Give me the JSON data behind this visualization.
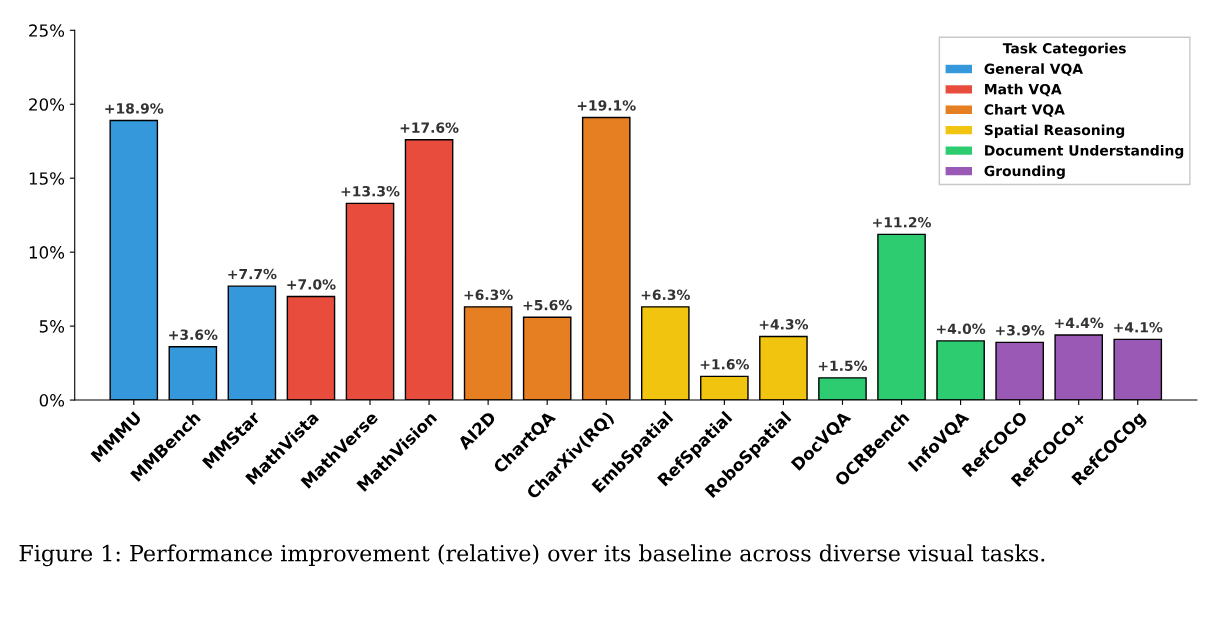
{
  "chart_data": {
    "type": "bar",
    "categories": [
      "MMMU",
      "MMBench",
      "MMStar",
      "MathVista",
      "MathVerse",
      "MathVision",
      "AI2D",
      "ChartQA",
      "CharXiv(RQ)",
      "EmbSpatial",
      "RefSpatial",
      "RoboSpatial",
      "DocVQA",
      "OCRBench",
      "InfoVQA",
      "RefCOCO",
      "RefCOCO+",
      "RefCOCOg"
    ],
    "series": [
      {
        "name": "General VQA",
        "color": "#3498db",
        "values": [
          18.9,
          3.6,
          7.7,
          null,
          null,
          null,
          null,
          null,
          null,
          null,
          null,
          null,
          null,
          null,
          null,
          null,
          null,
          null
        ],
        "value_labels": [
          "+18.9%",
          "+3.6%",
          "+7.7%",
          null,
          null,
          null,
          null,
          null,
          null,
          null,
          null,
          null,
          null,
          null,
          null,
          null,
          null,
          null
        ]
      },
      {
        "name": "Math VQA",
        "color": "#e74c3c",
        "values": [
          null,
          null,
          null,
          7.0,
          13.3,
          17.6,
          null,
          null,
          null,
          null,
          null,
          null,
          null,
          null,
          null,
          null,
          null,
          null
        ],
        "value_labels": [
          null,
          null,
          null,
          "+7.0%",
          "+13.3%",
          "+17.6%",
          null,
          null,
          null,
          null,
          null,
          null,
          null,
          null,
          null,
          null,
          null,
          null
        ]
      },
      {
        "name": "Chart VQA",
        "color": "#e67e22",
        "values": [
          null,
          null,
          null,
          null,
          null,
          null,
          6.3,
          5.6,
          19.1,
          null,
          null,
          null,
          null,
          null,
          null,
          null,
          null,
          null
        ],
        "value_labels": [
          null,
          null,
          null,
          null,
          null,
          null,
          "+6.3%",
          "+5.6%",
          "+19.1%",
          null,
          null,
          null,
          null,
          null,
          null,
          null,
          null,
          null
        ]
      },
      {
        "name": "Spatial Reasoning",
        "color": "#f1c40f",
        "values": [
          null,
          null,
          null,
          null,
          null,
          null,
          null,
          null,
          null,
          6.3,
          1.6,
          4.3,
          null,
          null,
          null,
          null,
          null,
          null
        ],
        "value_labels": [
          null,
          null,
          null,
          null,
          null,
          null,
          null,
          null,
          null,
          "+6.3%",
          "+1.6%",
          "+4.3%",
          null,
          null,
          null,
          null,
          null,
          null
        ]
      },
      {
        "name": "Document Understanding",
        "color": "#2ecc71",
        "values": [
          null,
          null,
          null,
          null,
          null,
          null,
          null,
          null,
          null,
          null,
          null,
          null,
          1.5,
          11.2,
          4.0,
          null,
          null,
          null
        ],
        "value_labels": [
          null,
          null,
          null,
          null,
          null,
          null,
          null,
          null,
          null,
          null,
          null,
          null,
          "+1.5%",
          "+11.2%",
          "+4.0%",
          null,
          null,
          null
        ]
      },
      {
        "name": "Grounding",
        "color": "#9b59b6",
        "values": [
          null,
          null,
          null,
          null,
          null,
          null,
          null,
          null,
          null,
          null,
          null,
          null,
          null,
          null,
          null,
          3.9,
          4.4,
          4.1
        ],
        "value_labels": [
          null,
          null,
          null,
          null,
          null,
          null,
          null,
          null,
          null,
          null,
          null,
          null,
          null,
          null,
          null,
          "+3.9%",
          "+4.4%",
          "+4.1%"
        ]
      }
    ],
    "ylim": [
      0,
      25
    ],
    "yticks": [
      {
        "value": 0,
        "label": "0%"
      },
      {
        "value": 5,
        "label": "5%"
      },
      {
        "value": 10,
        "label": "10%"
      },
      {
        "value": 15,
        "label": "15%"
      },
      {
        "value": 20,
        "label": "20%"
      },
      {
        "value": 25,
        "label": "25%"
      }
    ],
    "legend": "top right",
    "legend_title": "Task Categories",
    "grid": false,
    "annotations": [
      "Figure 1: Performance improvement (relative) over its baseline across diverse visual tasks."
    ]
  }
}
